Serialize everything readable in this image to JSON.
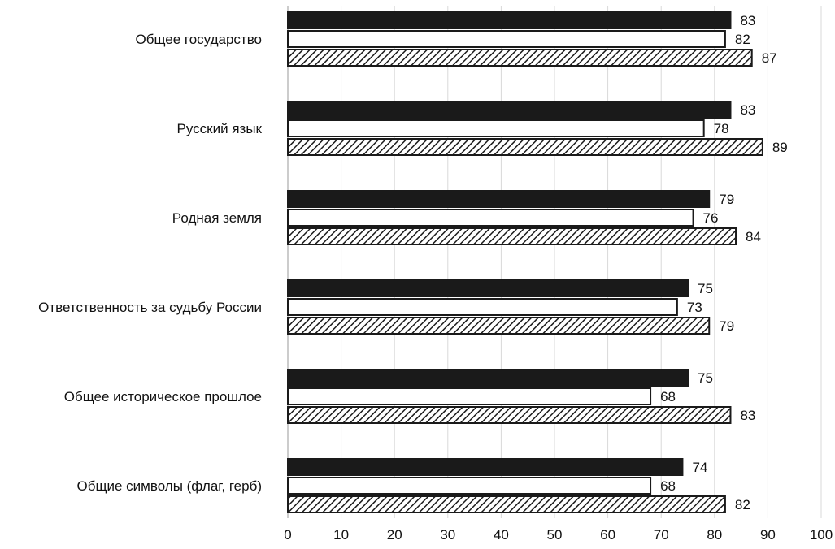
{
  "chart_data": {
    "type": "bar",
    "orientation": "horizontal",
    "categories": [
      "Общее государство",
      "Русский язык",
      "Родная земля",
      "Ответственность за судьбу России",
      "Общее историческое прошлое",
      "Общие символы (флаг, герб)"
    ],
    "series": [
      {
        "fill": "solid",
        "color": "#1a1a1a",
        "values": [
          83,
          83,
          79,
          75,
          75,
          74
        ]
      },
      {
        "fill": "outline",
        "color": "#ffffff",
        "values": [
          82,
          78,
          76,
          73,
          68,
          68
        ]
      },
      {
        "fill": "hatched",
        "color": "#1a1a1a",
        "values": [
          87,
          89,
          84,
          79,
          83,
          82
        ]
      }
    ],
    "xlim": [
      0,
      100
    ],
    "xticks": [
      0,
      10,
      20,
      30,
      40,
      50,
      60,
      70,
      80,
      90,
      100
    ],
    "title": "",
    "xlabel": "",
    "ylabel": "",
    "grid": "vertical",
    "legend": "none",
    "gridColor": "#d9d9d9"
  }
}
